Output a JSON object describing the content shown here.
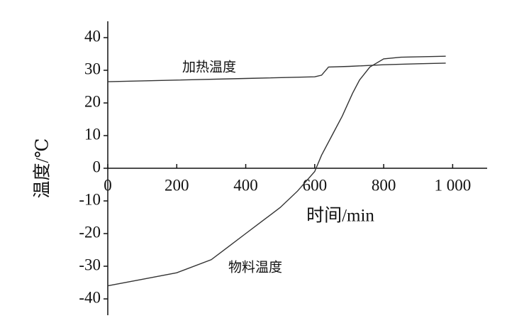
{
  "chart_data": {
    "type": "line",
    "x_label": "时间/min",
    "y_label": "温度/℃",
    "xlim": [
      0,
      1100
    ],
    "ylim": [
      -45,
      45
    ],
    "xticks": [
      0,
      200,
      400,
      600,
      800,
      {
        "value": 1000,
        "label": "1 000"
      }
    ],
    "yticks": [
      -40,
      -30,
      -20,
      -10,
      0,
      10,
      20,
      30,
      40
    ],
    "series": [
      {
        "name": "加热温度",
        "color": "#333333",
        "x": [
          0,
          200,
          400,
          600,
          620,
          640,
          700,
          800,
          900,
          980
        ],
        "values": [
          26.5,
          27,
          27.5,
          28,
          28.5,
          31,
          31.2,
          31.7,
          32,
          32.2
        ]
      },
      {
        "name": "物料温度",
        "color": "#333333",
        "x": [
          0,
          100,
          200,
          300,
          350,
          400,
          450,
          500,
          550,
          600,
          620,
          650,
          680,
          710,
          730,
          760,
          800,
          850,
          980
        ],
        "values": [
          -36,
          -34,
          -32,
          -28,
          -24,
          -20,
          -16,
          -12,
          -7,
          -1,
          4,
          10,
          16,
          23,
          27,
          31,
          33.5,
          34,
          34.3
        ]
      }
    ]
  }
}
